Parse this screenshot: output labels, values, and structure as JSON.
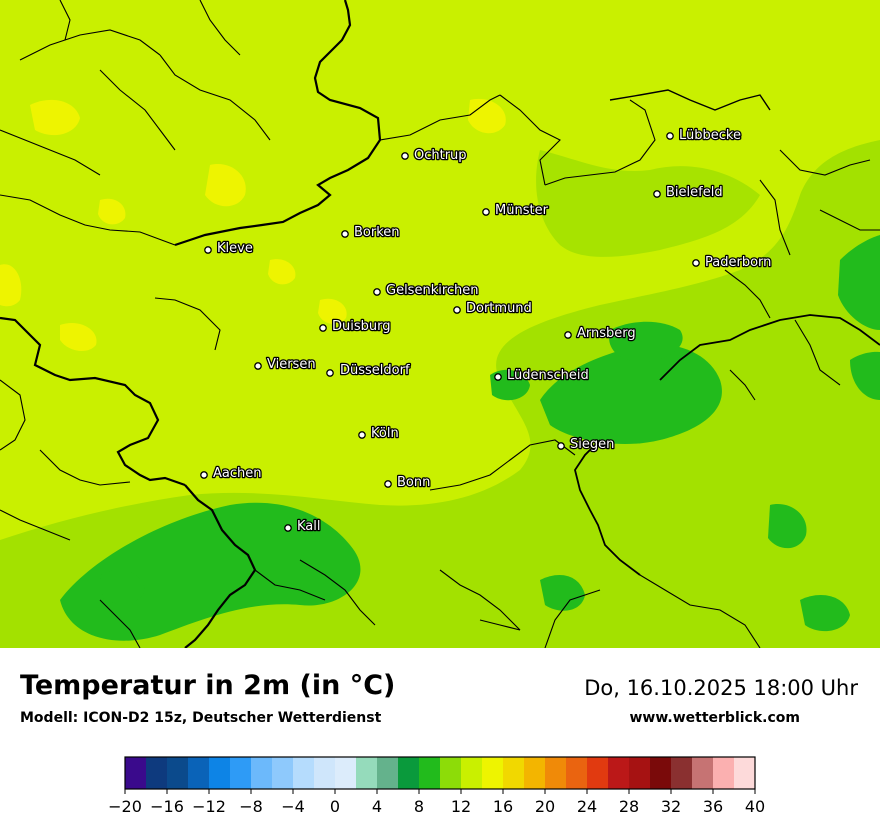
{
  "title": "Temperatur in 2m (in °C)",
  "model": "Modell: ICON-D2 15z, Deutscher Wetterdienst",
  "datetime": "Do, 16.10.2025 18:00 Uhr",
  "website": "www.wetterblick.com",
  "cities": [
    {
      "name": "Lübbecke"
    },
    {
      "name": "Ochtrup"
    },
    {
      "name": "Bielefeld"
    },
    {
      "name": "Münster"
    },
    {
      "name": "Borken"
    },
    {
      "name": "Kleve"
    },
    {
      "name": "Paderborn"
    },
    {
      "name": "Gelsenkirchen"
    },
    {
      "name": "Dortmund"
    },
    {
      "name": "Duisburg"
    },
    {
      "name": "Arnsberg"
    },
    {
      "name": "Viersen"
    },
    {
      "name": "Düsseldorf"
    },
    {
      "name": "Lüdenscheid"
    },
    {
      "name": "Köln"
    },
    {
      "name": "Siegen"
    },
    {
      "name": "Aachen"
    },
    {
      "name": "Bonn"
    },
    {
      "name": "Kall"
    }
  ],
  "legend": {
    "ticks": [
      "−20",
      "−16",
      "−12",
      "−8",
      "−4",
      "0",
      "4",
      "8",
      "12",
      "16",
      "20",
      "24",
      "28",
      "32",
      "36",
      "40"
    ],
    "colors": [
      "#3a0a8c",
      "#0e3a7e",
      "#0b4a8c",
      "#0a63b8",
      "#0d84e6",
      "#2e9bf6",
      "#6cb9fb",
      "#8ec9fc",
      "#b5dcfd",
      "#cfe6fb",
      "#dcecfb",
      "#95dbbb",
      "#64b28c",
      "#0a9a3c",
      "#22bb1c",
      "#8ddc08",
      "#c9f000",
      "#eef400",
      "#f1d800",
      "#f3b500",
      "#f08a08",
      "#ea6410",
      "#e13a10",
      "#bb1818",
      "#a61212",
      "#7a0a0a",
      "#8a3030",
      "#c67373",
      "#fbb0b0",
      "#fddada"
    ]
  }
}
